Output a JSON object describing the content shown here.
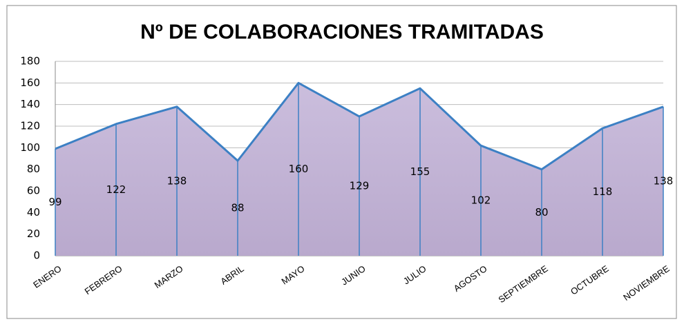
{
  "chart_data": {
    "type": "area",
    "title": "Nº DE COLABORACIONES TRAMITADAS",
    "categories": [
      "ENERO",
      "FEBRERO",
      "MARZO",
      "ABRIL",
      "MAYO",
      "JUNIO",
      "JULIO",
      "AGOSTO",
      "SEPTIEMBRE",
      "OCTUBRE",
      "NOVIEMBRE"
    ],
    "values": [
      99,
      122,
      138,
      88,
      160,
      129,
      155,
      102,
      80,
      118,
      138
    ],
    "color": "#3c80c4",
    "fill": "#c6b9d9",
    "ylim": [
      0,
      180
    ],
    "yticks": [
      0,
      20,
      40,
      60,
      80,
      100,
      120,
      140,
      160,
      180
    ],
    "grid": true
  }
}
